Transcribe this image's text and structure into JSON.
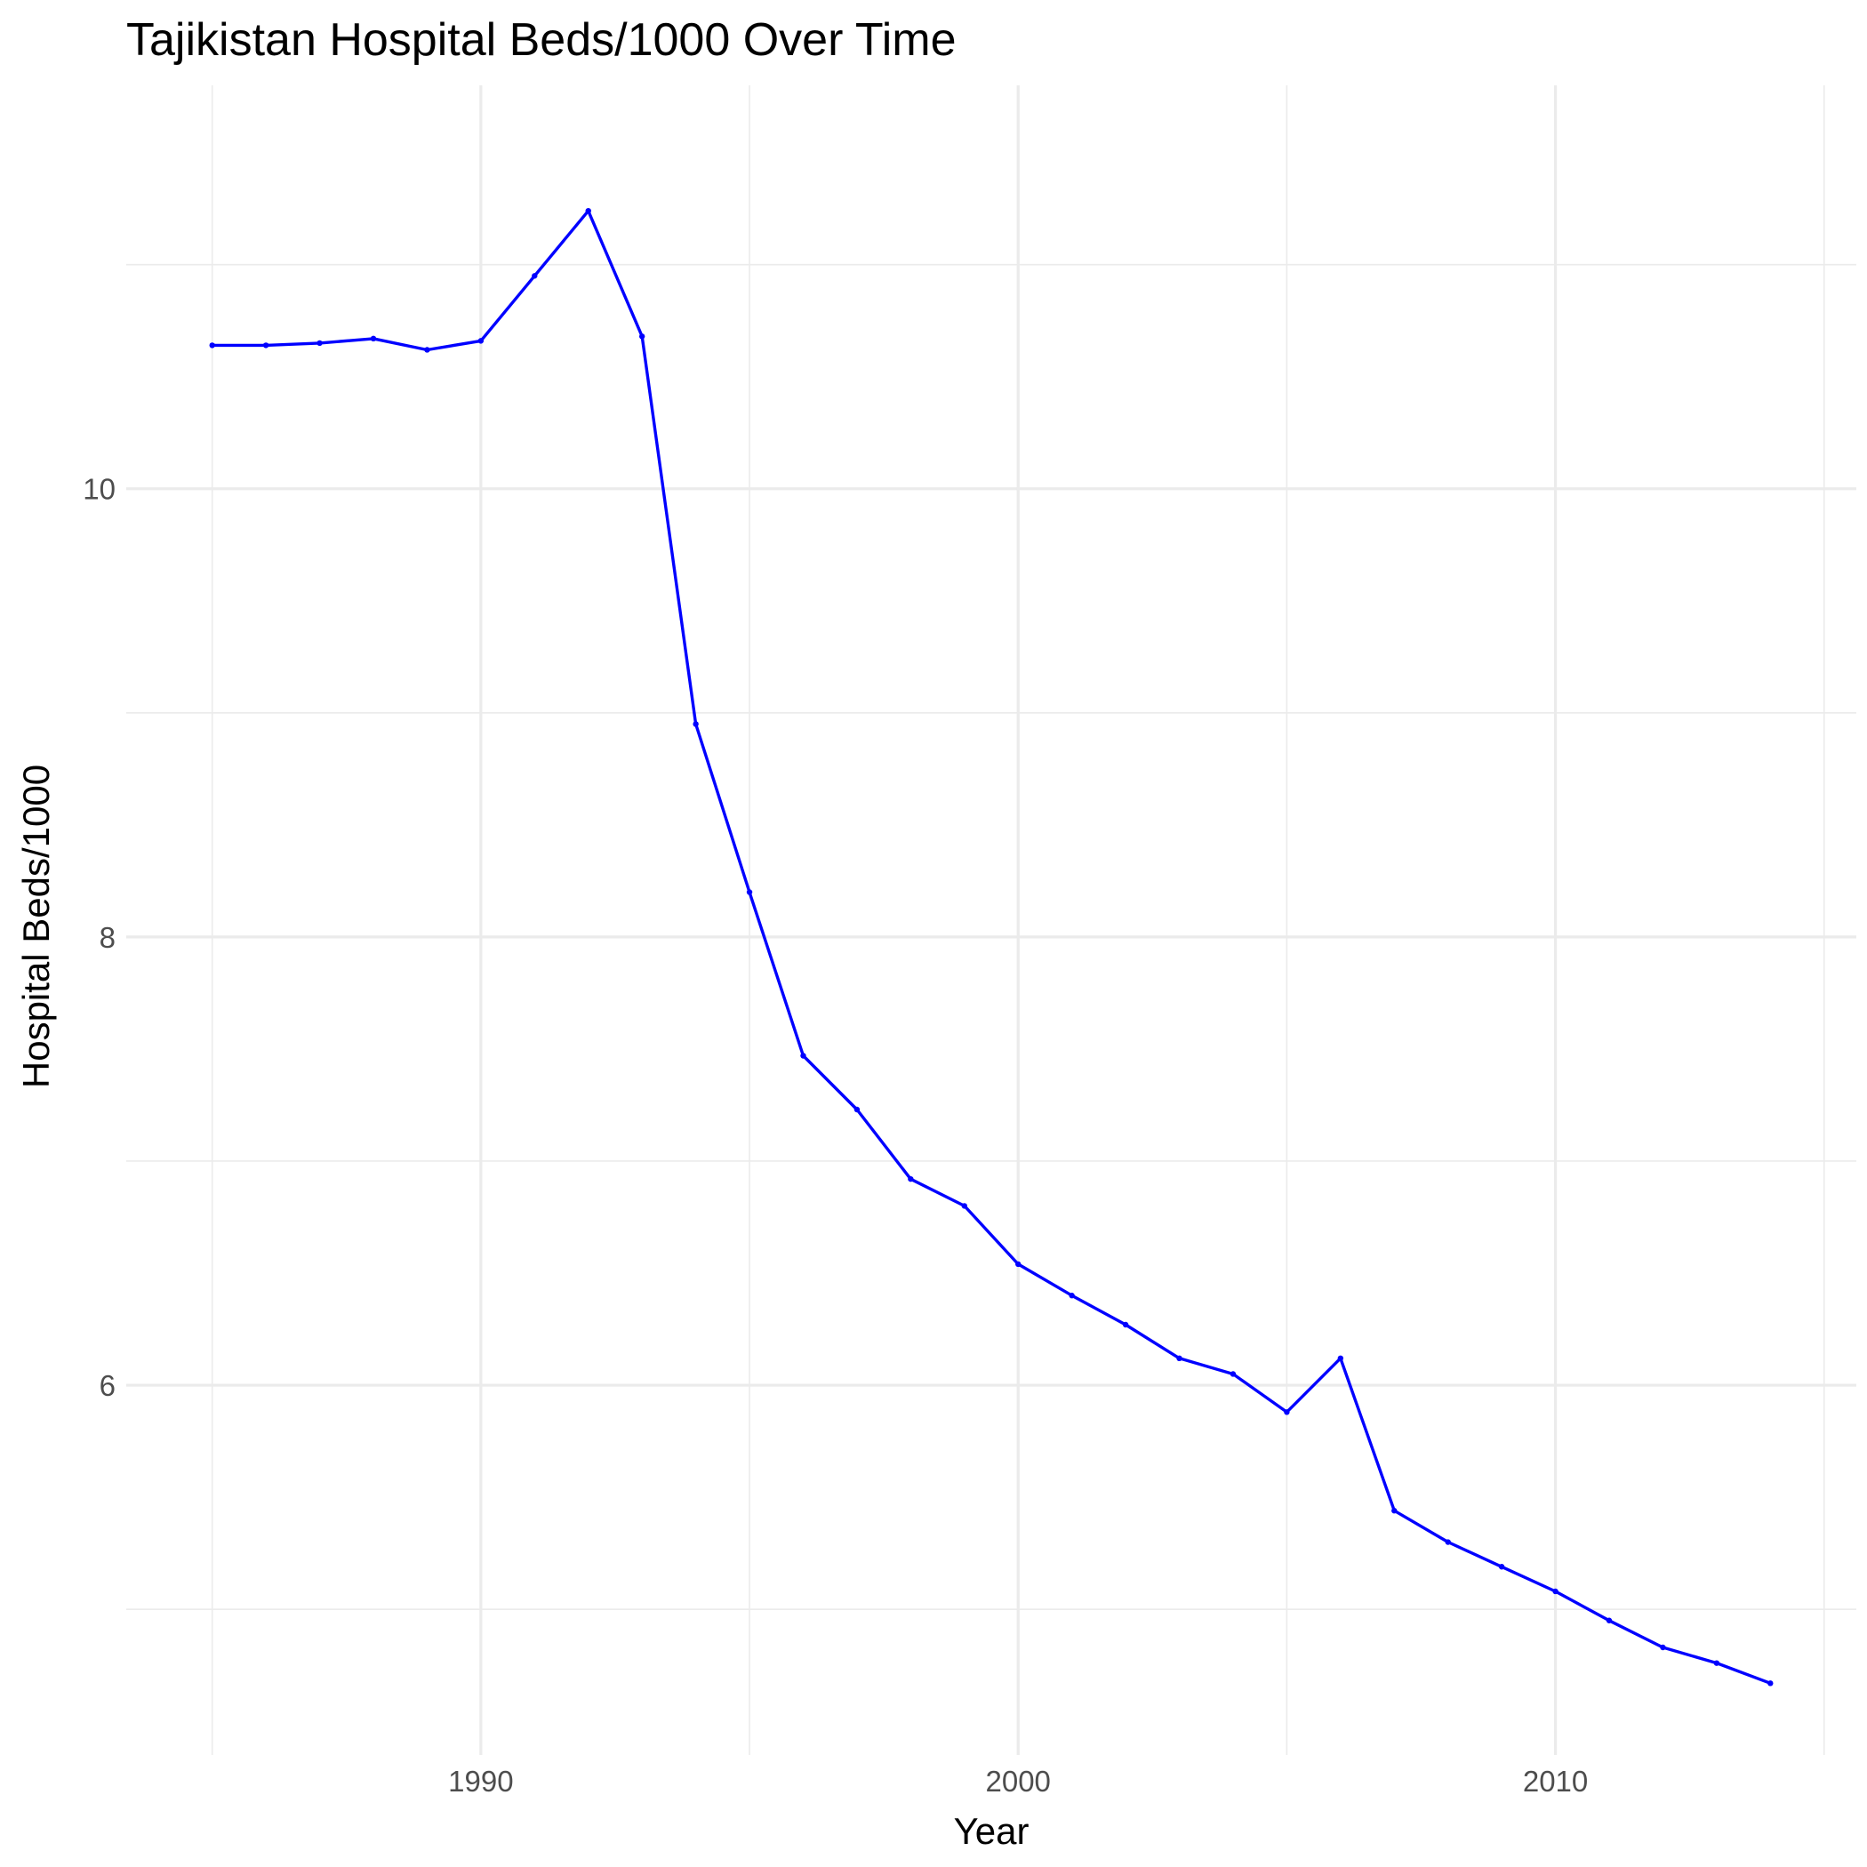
{
  "chart_data": {
    "type": "line",
    "title": "Tajikistan Hospital Beds/1000 Over Time",
    "xlabel": "Year",
    "ylabel": "Hospital Beds/1000",
    "xlim": [
      1983.4,
      2015.6
    ],
    "ylim": [
      4.35,
      11.8
    ],
    "x_ticks": [
      1990,
      2000,
      2010
    ],
    "x_minor": [
      1985,
      1995,
      2005,
      2015
    ],
    "y_ticks": [
      6,
      8,
      10
    ],
    "y_minor": [
      5,
      7,
      9,
      11
    ],
    "grid": true,
    "line_color": "#0000ff",
    "series": [
      {
        "x": [
          1985,
          1986,
          1987,
          1988,
          1989,
          1990,
          1991,
          1992,
          1993,
          1994,
          1995,
          1996,
          1997,
          1998,
          1999,
          2000,
          2001,
          2002,
          2003,
          2004,
          2005,
          2006,
          2007,
          2008,
          2009,
          2010,
          2011,
          2012,
          2013,
          2014
        ],
        "values": [
          10.64,
          10.64,
          10.65,
          10.67,
          10.62,
          10.66,
          10.95,
          11.24,
          10.68,
          8.95,
          8.2,
          7.47,
          7.23,
          6.92,
          6.8,
          6.54,
          6.4,
          6.27,
          6.12,
          6.05,
          5.88,
          6.12,
          5.44,
          5.3,
          5.19,
          5.08,
          4.95,
          4.83,
          4.76,
          4.67
        ]
      }
    ]
  }
}
